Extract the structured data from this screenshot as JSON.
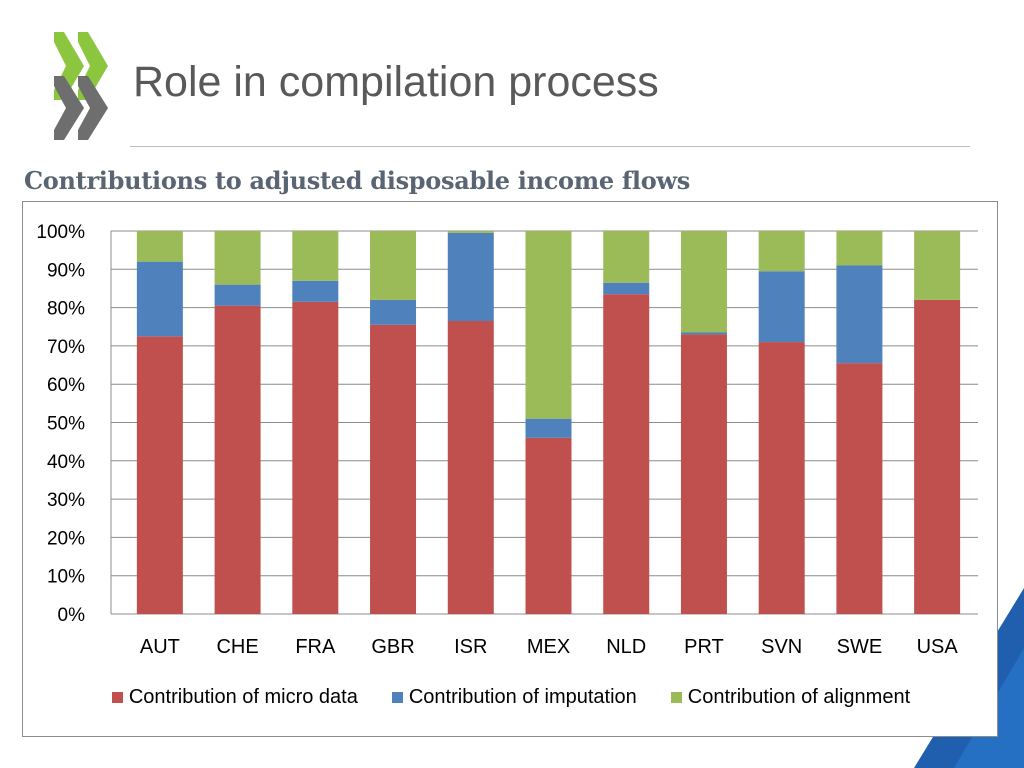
{
  "slide": {
    "title": "Role in compilation process",
    "subtitle": "Contributions to adjusted disposable income flows"
  },
  "colors": {
    "micro": "#c0504d",
    "imputation": "#4f81bd",
    "alignment": "#9bbb59",
    "logo_green": "#8cc63f",
    "logo_gray": "#6e6e6e",
    "corner_blue": "#1f5fae"
  },
  "icons": {
    "logo": "oecd-chevron-logo-icon",
    "corner": "corner-triangle-decoration"
  },
  "chart_data": {
    "type": "bar",
    "stacked": true,
    "title": "Contributions to adjusted disposable income flows",
    "categories": [
      "AUT",
      "CHE",
      "FRA",
      "GBR",
      "ISR",
      "MEX",
      "NLD",
      "PRT",
      "SVN",
      "SWE",
      "USA"
    ],
    "series": [
      {
        "name": "Contribution of micro data",
        "color": "#c0504d",
        "values": [
          72.5,
          80.5,
          81.5,
          75.5,
          76.5,
          46,
          83.5,
          73,
          71,
          65.5,
          82
        ]
      },
      {
        "name": "Contribution of imputation",
        "color": "#4f81bd",
        "values": [
          19.5,
          5.5,
          5.5,
          6.5,
          23,
          5,
          3,
          0.5,
          18.5,
          25.5,
          0
        ]
      },
      {
        "name": "Contribution of alignment",
        "color": "#9bbb59",
        "values": [
          8,
          14,
          13,
          18,
          0.5,
          49,
          13.5,
          26.5,
          10.5,
          9,
          18
        ]
      }
    ],
    "y_ticks": [
      "0%",
      "10%",
      "20%",
      "30%",
      "40%",
      "50%",
      "60%",
      "70%",
      "80%",
      "90%",
      "100%"
    ],
    "ylim": [
      0,
      100
    ],
    "grid": true,
    "legend_position": "bottom"
  }
}
